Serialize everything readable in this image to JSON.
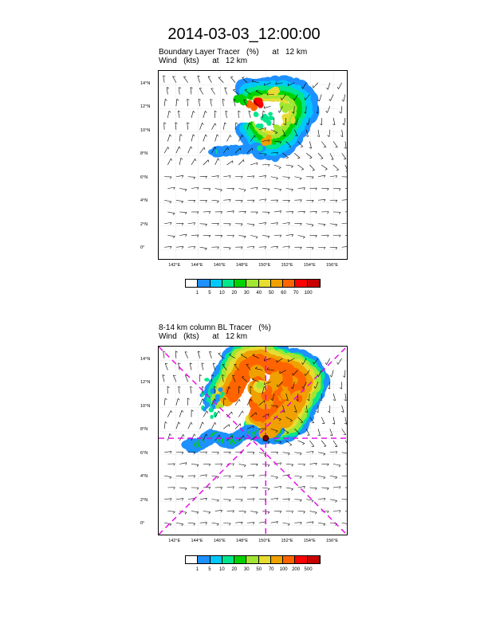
{
  "main_title": "2014-03-03_12:00:00",
  "panel1": {
    "subtitle_line1": "Boundary Layer Tracer   (%)      at   12 km",
    "subtitle_line2": "Wind   (kts)      at   12 km",
    "colorbar_labels": [
      "1",
      "5",
      "10",
      "20",
      "30",
      "40",
      "50",
      "60",
      "70",
      "100"
    ]
  },
  "panel2": {
    "subtitle_line1": "8-14 km column BL Tracer   (%)",
    "subtitle_line2": "Wind   (kts)      at   12 km",
    "colorbar_labels": [
      "1",
      "5",
      "10",
      "20",
      "30",
      "50",
      "70",
      "100",
      "200",
      "500"
    ]
  },
  "axes": {
    "lat_labels": [
      "0°",
      "2°N",
      "4°N",
      "6°N",
      "8°N",
      "10°N",
      "12°N",
      "14°N"
    ],
    "lon_labels": [
      "142°E",
      "144°E",
      "146°E",
      "148°E",
      "150°E",
      "152°E",
      "154°E",
      "156°E"
    ]
  },
  "colors": {
    "levels": [
      "#ffffff",
      "#1e90ff",
      "#00c8ff",
      "#00e68c",
      "#00d200",
      "#a0e632",
      "#e6dc32",
      "#f0a000",
      "#ff6400",
      "#ff0000",
      "#c80000"
    ],
    "crosshair": "#e600e6"
  },
  "storm_center": {
    "lat": 7.4,
    "lon": 150.0
  }
}
